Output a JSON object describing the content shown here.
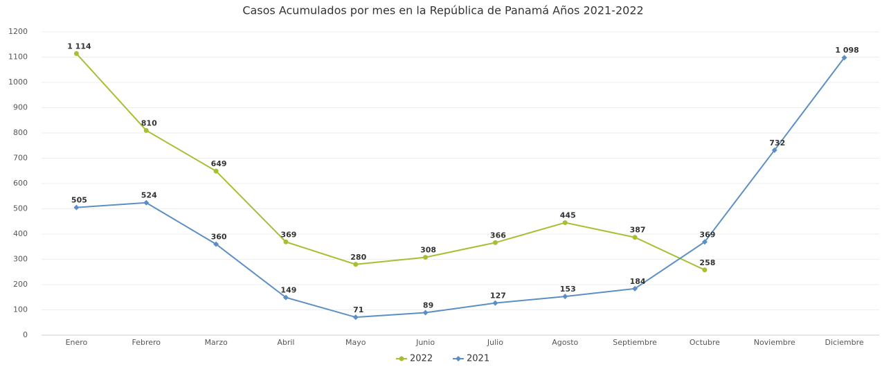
{
  "chart_data": {
    "type": "line",
    "title": "Casos Acumulados por mes en la República de Panamá Años 2021-2022",
    "categories": [
      "Enero",
      "Febrero",
      "Marzo",
      "Abril",
      "Mayo",
      "Junio",
      "Julio",
      "Agosto",
      "Septiembre",
      "Octubre",
      "Noviembre",
      "Diciembre"
    ],
    "series": [
      {
        "name": "2022",
        "color": "#a5c032",
        "marker": "circle",
        "values": [
          1114,
          810,
          649,
          369,
          280,
          308,
          366,
          445,
          387,
          258,
          null,
          null
        ],
        "value_labels": [
          "1 114",
          "810",
          "649",
          "369",
          "280",
          "308",
          "366",
          "445",
          "387",
          "258",
          null,
          null
        ]
      },
      {
        "name": "2021",
        "color": "#5b8fc4",
        "marker": "diamond",
        "values": [
          505,
          524,
          360,
          149,
          71,
          89,
          127,
          153,
          184,
          369,
          732,
          1098
        ],
        "value_labels": [
          "505",
          "524",
          "360",
          "149",
          "71",
          "89",
          "127",
          "153",
          "184",
          "369",
          "732",
          "1 098"
        ]
      }
    ],
    "ylim": [
      0,
      1200
    ],
    "yticks": [
      0,
      100,
      200,
      300,
      400,
      500,
      600,
      700,
      800,
      900,
      1000,
      1100,
      1200
    ],
    "grid": true,
    "legend": "bottom"
  }
}
